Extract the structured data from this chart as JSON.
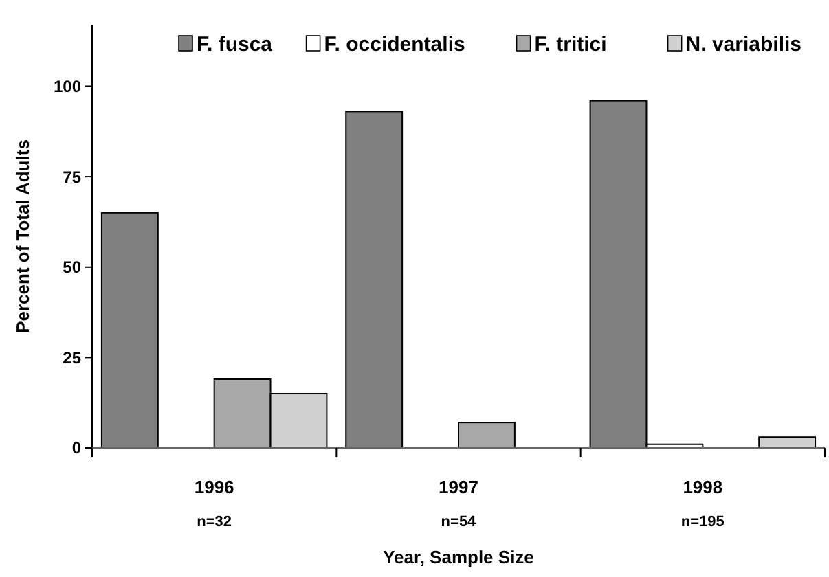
{
  "chart_data": {
    "type": "bar",
    "xlabel": "Year, Sample Size",
    "ylabel": "Percent of Total Adults",
    "categories": [
      "1996\nn=32",
      "1997\nn=54",
      "1998\nn=195"
    ],
    "series": [
      {
        "name": "F. fusca",
        "color": "#808080",
        "values": [
          65,
          93,
          96
        ]
      },
      {
        "name": "F. occidentalis",
        "color": "#ffffff",
        "values": [
          0,
          0,
          1
        ]
      },
      {
        "name": "F. tritici",
        "color": "#a8a8a8",
        "values": [
          19,
          7,
          0
        ]
      },
      {
        "name": "N. variabilis",
        "color": "#d0d0d0",
        "values": [
          15,
          0,
          3
        ]
      }
    ],
    "ylim": [
      0,
      117
    ],
    "yticks": [
      0,
      25,
      50,
      75,
      100
    ],
    "grid": false,
    "legend": "top"
  }
}
